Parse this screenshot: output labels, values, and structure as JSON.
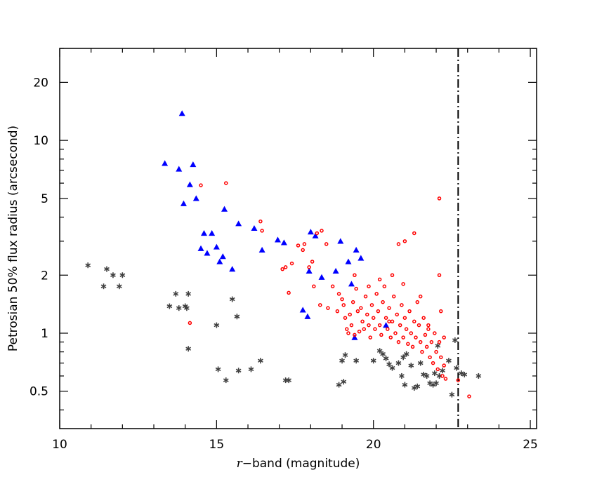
{
  "chart_data": {
    "type": "scatter",
    "xlabel_var": "r",
    "xlabel_rest": "−band (magnitude)",
    "ylabel": "Petrosian 50% flux radius (arcsecond)",
    "xlim": [
      10,
      25.2
    ],
    "ylim": [
      0.32,
      30
    ],
    "yscale": "log",
    "x_ticks": [
      10,
      15,
      20,
      25
    ],
    "x_tick_labels": [
      "10",
      "15",
      "20",
      "25"
    ],
    "y_ticks": [
      0.5,
      1,
      2,
      5,
      10,
      20
    ],
    "y_tick_labels": [
      "0.5",
      "1",
      "2",
      "5",
      "10",
      "20"
    ],
    "vline": {
      "x": 22.7,
      "style": "dash-dot"
    },
    "series": [
      {
        "marker": "star",
        "color": "#404040",
        "points": [
          [
            10.9,
            2.25
          ],
          [
            11.4,
            1.75
          ],
          [
            11.5,
            2.15
          ],
          [
            11.7,
            2.0
          ],
          [
            11.9,
            1.75
          ],
          [
            12.0,
            2.0
          ],
          [
            13.5,
            1.38
          ],
          [
            13.7,
            1.6
          ],
          [
            13.8,
            1.35
          ],
          [
            14.0,
            1.38
          ],
          [
            14.05,
            1.35
          ],
          [
            14.1,
            1.6
          ],
          [
            14.1,
            0.83
          ],
          [
            15.0,
            1.1
          ],
          [
            15.05,
            0.65
          ],
          [
            15.3,
            0.57
          ],
          [
            15.5,
            1.5
          ],
          [
            15.65,
            1.22
          ],
          [
            15.7,
            0.64
          ],
          [
            16.1,
            0.65
          ],
          [
            16.4,
            0.72
          ],
          [
            17.2,
            0.57
          ],
          [
            17.3,
            0.57
          ],
          [
            18.9,
            0.54
          ],
          [
            19.0,
            0.72
          ],
          [
            19.05,
            0.56
          ],
          [
            19.1,
            0.77
          ],
          [
            19.45,
            0.72
          ],
          [
            20.0,
            0.72
          ],
          [
            20.2,
            0.81
          ],
          [
            20.3,
            0.78
          ],
          [
            20.4,
            0.74
          ],
          [
            20.5,
            0.69
          ],
          [
            20.6,
            0.66
          ],
          [
            20.8,
            0.7
          ],
          [
            20.9,
            0.6
          ],
          [
            20.95,
            0.75
          ],
          [
            21.0,
            0.54
          ],
          [
            21.05,
            0.78
          ],
          [
            21.2,
            0.68
          ],
          [
            21.3,
            0.52
          ],
          [
            21.4,
            0.53
          ],
          [
            21.5,
            0.7
          ],
          [
            21.6,
            0.61
          ],
          [
            21.7,
            0.6
          ],
          [
            21.8,
            0.55
          ],
          [
            21.9,
            0.54
          ],
          [
            21.95,
            0.62
          ],
          [
            22.0,
            0.55
          ],
          [
            22.05,
            0.86
          ],
          [
            22.1,
            0.6
          ],
          [
            22.2,
            0.64
          ],
          [
            22.4,
            0.72
          ],
          [
            22.5,
            0.48
          ],
          [
            22.6,
            0.92
          ],
          [
            22.65,
            0.66
          ],
          [
            22.8,
            0.62
          ],
          [
            22.9,
            0.61
          ],
          [
            23.35,
            0.6
          ]
        ]
      },
      {
        "marker": "triangle",
        "color": "#0000ff",
        "points": [
          [
            13.35,
            7.6
          ],
          [
            13.8,
            7.1
          ],
          [
            13.95,
            4.7
          ],
          [
            13.9,
            13.8
          ],
          [
            14.15,
            5.9
          ],
          [
            14.25,
            7.5
          ],
          [
            14.35,
            5.0
          ],
          [
            14.5,
            2.75
          ],
          [
            14.6,
            3.3
          ],
          [
            14.7,
            2.6
          ],
          [
            14.85,
            3.3
          ],
          [
            15.0,
            2.8
          ],
          [
            15.1,
            2.35
          ],
          [
            15.2,
            2.5
          ],
          [
            15.25,
            4.4
          ],
          [
            15.5,
            2.15
          ],
          [
            15.7,
            3.7
          ],
          [
            16.2,
            3.5
          ],
          [
            16.45,
            2.7
          ],
          [
            16.95,
            3.05
          ],
          [
            17.15,
            2.95
          ],
          [
            17.75,
            1.32
          ],
          [
            17.9,
            1.22
          ],
          [
            17.95,
            2.1
          ],
          [
            18.0,
            3.35
          ],
          [
            18.15,
            3.2
          ],
          [
            18.35,
            1.95
          ],
          [
            18.8,
            2.1
          ],
          [
            18.95,
            3.0
          ],
          [
            19.2,
            2.35
          ],
          [
            19.3,
            1.8
          ],
          [
            19.4,
            0.95
          ],
          [
            19.45,
            2.7
          ],
          [
            19.6,
            2.45
          ],
          [
            20.4,
            1.1
          ]
        ]
      },
      {
        "marker": "circle",
        "color": "#ff0000",
        "points": [
          [
            14.15,
            1.13
          ],
          [
            14.5,
            5.85
          ],
          [
            15.3,
            6.0
          ],
          [
            16.4,
            3.8
          ],
          [
            16.45,
            3.4
          ],
          [
            17.1,
            2.15
          ],
          [
            17.2,
            2.2
          ],
          [
            17.3,
            1.62
          ],
          [
            17.4,
            2.3
          ],
          [
            17.6,
            2.85
          ],
          [
            17.75,
            2.7
          ],
          [
            17.8,
            2.9
          ],
          [
            17.95,
            2.2
          ],
          [
            18.05,
            2.35
          ],
          [
            18.1,
            1.75
          ],
          [
            18.2,
            3.3
          ],
          [
            18.3,
            1.4
          ],
          [
            18.35,
            3.4
          ],
          [
            18.5,
            2.9
          ],
          [
            18.55,
            1.35
          ],
          [
            18.7,
            1.75
          ],
          [
            18.85,
            1.3
          ],
          [
            18.9,
            1.6
          ],
          [
            19.0,
            1.5
          ],
          [
            19.05,
            1.4
          ],
          [
            19.1,
            1.2
          ],
          [
            19.15,
            1.05
          ],
          [
            19.2,
            1.0
          ],
          [
            19.25,
            1.25
          ],
          [
            19.3,
            1.1
          ],
          [
            19.35,
            1.45
          ],
          [
            19.4,
            0.98
          ],
          [
            19.45,
            1.7
          ],
          [
            19.5,
            1.3
          ],
          [
            19.55,
            1.02
          ],
          [
            19.6,
            1.35
          ],
          [
            19.65,
            1.15
          ],
          [
            19.7,
            1.05
          ],
          [
            19.75,
            1.55
          ],
          [
            19.8,
            1.25
          ],
          [
            19.85,
            1.1
          ],
          [
            19.9,
            0.95
          ],
          [
            19.95,
            1.4
          ],
          [
            20.0,
            1.2
          ],
          [
            20.05,
            1.05
          ],
          [
            20.1,
            1.6
          ],
          [
            20.15,
            1.3
          ],
          [
            20.2,
            1.1
          ],
          [
            20.25,
            0.98
          ],
          [
            20.3,
            1.45
          ],
          [
            20.35,
            1.75
          ],
          [
            20.4,
            1.2
          ],
          [
            20.45,
            1.05
          ],
          [
            20.5,
            1.35
          ],
          [
            20.55,
            0.95
          ],
          [
            20.6,
            1.15
          ],
          [
            20.65,
            1.55
          ],
          [
            20.7,
            1.0
          ],
          [
            20.75,
            1.25
          ],
          [
            20.8,
            0.9
          ],
          [
            20.85,
            1.1
          ],
          [
            20.9,
            1.4
          ],
          [
            20.95,
            0.95
          ],
          [
            21.0,
            1.2
          ],
          [
            21.05,
            1.05
          ],
          [
            21.1,
            0.88
          ],
          [
            21.15,
            1.3
          ],
          [
            21.2,
            1.0
          ],
          [
            21.25,
            0.85
          ],
          [
            21.3,
            1.15
          ],
          [
            21.35,
            0.95
          ],
          [
            21.4,
            1.45
          ],
          [
            21.45,
            1.1
          ],
          [
            21.5,
            0.9
          ],
          [
            21.55,
            0.8
          ],
          [
            21.6,
            1.2
          ],
          [
            21.65,
            0.98
          ],
          [
            21.7,
            0.85
          ],
          [
            21.75,
            1.05
          ],
          [
            21.8,
            0.75
          ],
          [
            21.85,
            0.9
          ],
          [
            21.9,
            0.7
          ],
          [
            21.95,
            1.0
          ],
          [
            22.0,
            0.8
          ],
          [
            22.05,
            0.65
          ],
          [
            22.1,
            0.9
          ],
          [
            22.15,
            0.75
          ],
          [
            22.2,
            0.6
          ],
          [
            22.25,
            0.68
          ],
          [
            22.3,
            0.58
          ],
          [
            22.1,
            2.0
          ],
          [
            22.1,
            5.0
          ],
          [
            21.3,
            3.3
          ],
          [
            20.8,
            2.9
          ],
          [
            21.0,
            3.0
          ],
          [
            22.15,
            1.3
          ],
          [
            21.5,
            1.55
          ],
          [
            20.95,
            1.8
          ],
          [
            20.6,
            2.0
          ],
          [
            19.4,
            2.0
          ],
          [
            22.7,
            0.57
          ],
          [
            23.05,
            0.47
          ],
          [
            20.2,
            1.9
          ],
          [
            19.85,
            1.75
          ],
          [
            20.5,
            1.15
          ],
          [
            21.75,
            1.1
          ],
          [
            22.25,
            0.95
          ]
        ]
      }
    ]
  }
}
